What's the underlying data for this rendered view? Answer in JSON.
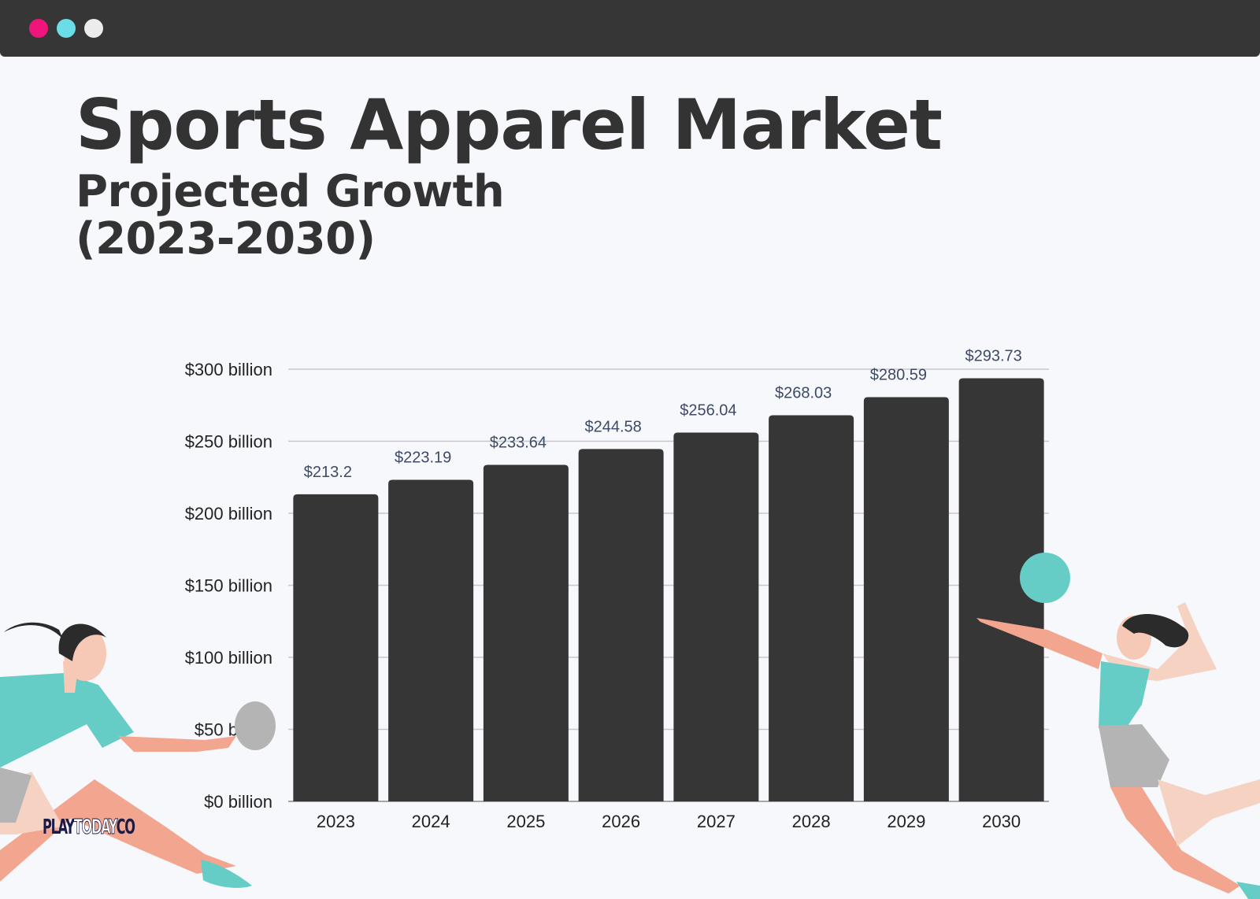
{
  "window": {
    "controls": [
      "close-dot",
      "minimize-dot",
      "maximize-dot"
    ]
  },
  "header": {
    "title": "Sports Apparel Market",
    "subtitle_line1": "Projected Growth",
    "subtitle_line2": "(2023-2030)"
  },
  "logo": {
    "text_a": "PLAY",
    "text_b": "TODAY",
    "text_c": "CO"
  },
  "colors": {
    "bar": "#363636",
    "grid": "#c8c8cc",
    "accent_teal": "#66cdc6",
    "accent_pink": "#f0157a",
    "skin": "#f5c9b5",
    "coral": "#f2a58f"
  },
  "chart_data": {
    "type": "bar",
    "categories": [
      "2023",
      "2024",
      "2025",
      "2026",
      "2027",
      "2028",
      "2029",
      "2030"
    ],
    "values": [
      213.2,
      223.19,
      233.64,
      244.58,
      256.04,
      268.03,
      280.59,
      293.73
    ],
    "value_labels": [
      "$213.2",
      "$223.19",
      "$233.64",
      "$244.58",
      "$256.04",
      "$268.03",
      "$280.59",
      "$293.73"
    ],
    "yticks": [
      0,
      50,
      100,
      150,
      200,
      250,
      300
    ],
    "ytick_labels": [
      "$0 billion",
      "$50 billion",
      "$100 billion",
      "$150 billion",
      "$200 billion",
      "$250 billion",
      "$300 billion"
    ],
    "ylim": [
      0,
      300
    ],
    "grid": true,
    "legend": "none"
  }
}
